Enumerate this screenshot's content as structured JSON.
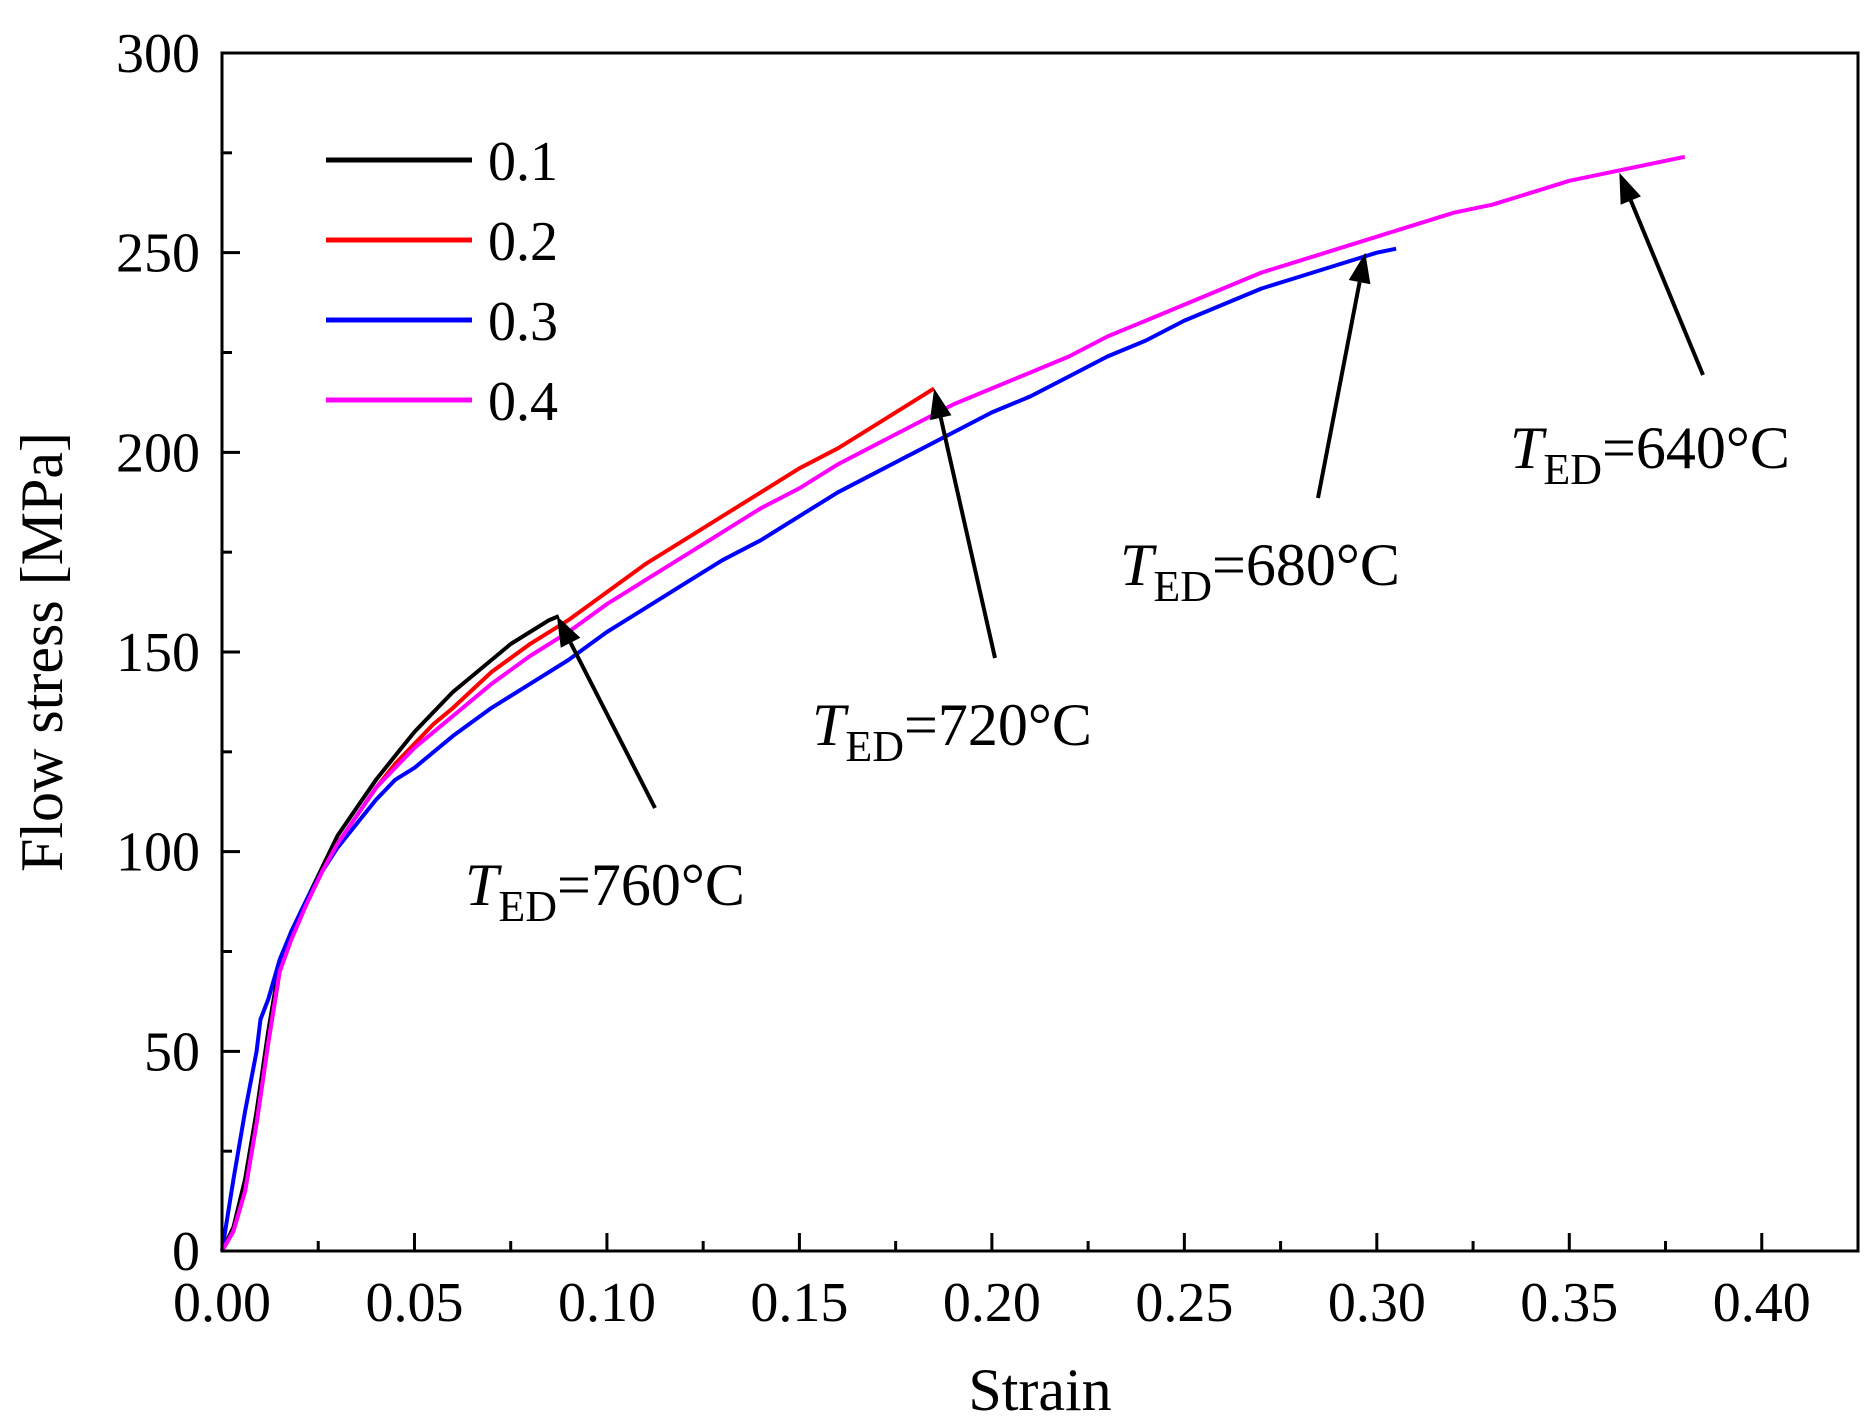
{
  "chart_data": {
    "type": "line",
    "title": "",
    "xlabel": "Strain",
    "ylabel": "Flow stress [MPa]",
    "xlim": [
      0,
      0.425
    ],
    "ylim": [
      0,
      300
    ],
    "xticks": [
      0.0,
      0.05,
      0.1,
      0.15,
      0.2,
      0.25,
      0.3,
      0.35,
      0.4
    ],
    "xtick_labels": [
      "0.00",
      "0.05",
      "0.10",
      "0.15",
      "0.20",
      "0.25",
      "0.30",
      "0.35",
      "0.40"
    ],
    "yticks": [
      0,
      50,
      100,
      150,
      200,
      250,
      300
    ],
    "ytick_labels": [
      "0",
      "50",
      "100",
      "150",
      "200",
      "250",
      "300"
    ],
    "grid": false,
    "legend_position": "top-left",
    "series": [
      {
        "name": "0.1",
        "color": "#000000",
        "x": [
          0,
          0.003,
          0.006,
          0.009,
          0.012,
          0.015,
          0.018,
          0.022,
          0.026,
          0.03,
          0.035,
          0.04,
          0.045,
          0.05,
          0.055,
          0.06,
          0.065,
          0.07,
          0.075,
          0.08,
          0.085,
          0.0875
        ],
        "y": [
          0,
          6,
          18,
          35,
          55,
          72,
          80,
          88,
          96,
          104,
          111,
          118,
          124,
          130,
          135,
          140,
          144,
          148,
          152,
          155,
          158,
          159
        ]
      },
      {
        "name": "0.2",
        "color": "#ff0000",
        "x": [
          0,
          0.003,
          0.006,
          0.009,
          0.012,
          0.015,
          0.018,
          0.022,
          0.026,
          0.03,
          0.035,
          0.04,
          0.045,
          0.05,
          0.055,
          0.06,
          0.07,
          0.08,
          0.09,
          0.1,
          0.11,
          0.12,
          0.13,
          0.14,
          0.15,
          0.16,
          0.17,
          0.18,
          0.185
        ],
        "y": [
          0,
          5,
          15,
          32,
          52,
          70,
          78,
          87,
          95,
          102,
          109,
          116,
          122,
          127,
          132,
          136,
          145,
          152,
          158,
          165,
          172,
          178,
          184,
          190,
          196,
          201,
          207,
          213,
          216
        ]
      },
      {
        "name": "0.3",
        "color": "#0000ff",
        "x": [
          0,
          0.003,
          0.006,
          0.009,
          0.01,
          0.012,
          0.015,
          0.018,
          0.022,
          0.026,
          0.03,
          0.035,
          0.04,
          0.045,
          0.05,
          0.06,
          0.07,
          0.08,
          0.09,
          0.1,
          0.11,
          0.12,
          0.13,
          0.14,
          0.15,
          0.16,
          0.17,
          0.18,
          0.19,
          0.2,
          0.21,
          0.22,
          0.23,
          0.24,
          0.25,
          0.26,
          0.27,
          0.28,
          0.29,
          0.3,
          0.305
        ],
        "y": [
          0,
          18,
          35,
          50,
          58,
          63,
          73,
          80,
          88,
          95,
          101,
          107,
          113,
          118,
          121,
          129,
          136,
          142,
          148,
          155,
          161,
          167,
          173,
          178,
          184,
          190,
          195,
          200,
          205,
          210,
          214,
          219,
          224,
          228,
          233,
          237,
          241,
          244,
          247,
          250,
          251
        ]
      },
      {
        "name": "0.4",
        "color": "#ff00ff",
        "x": [
          0,
          0.003,
          0.006,
          0.009,
          0.012,
          0.015,
          0.018,
          0.022,
          0.026,
          0.03,
          0.035,
          0.04,
          0.045,
          0.05,
          0.06,
          0.07,
          0.08,
          0.09,
          0.1,
          0.11,
          0.12,
          0.13,
          0.14,
          0.15,
          0.16,
          0.17,
          0.18,
          0.19,
          0.2,
          0.21,
          0.22,
          0.23,
          0.24,
          0.25,
          0.26,
          0.27,
          0.28,
          0.29,
          0.3,
          0.31,
          0.32,
          0.33,
          0.34,
          0.35,
          0.36,
          0.37,
          0.38
        ],
        "y": [
          0,
          5,
          15,
          32,
          52,
          70,
          78,
          87,
          95,
          102,
          109,
          116,
          121,
          126,
          134,
          142,
          149,
          155,
          162,
          168,
          174,
          180,
          186,
          191,
          197,
          202,
          207,
          212,
          216,
          220,
          224,
          229,
          233,
          237,
          241,
          245,
          248,
          251,
          254,
          257,
          260,
          262,
          265,
          268,
          270,
          272,
          274
        ]
      }
    ],
    "annotations": [
      {
        "italic": "T",
        "sub": "ED",
        "rest": "=760°C",
        "arrow_to": [
          0.087,
          159
        ]
      },
      {
        "italic": "T",
        "sub": "ED",
        "rest": "=720°C",
        "arrow_to": [
          0.185,
          216
        ]
      },
      {
        "italic": "T",
        "sub": "ED",
        "rest": "=680°C",
        "arrow_to": [
          0.297,
          250
        ]
      },
      {
        "italic": "T",
        "sub": "ED",
        "rest": "=640°C",
        "arrow_to": [
          0.363,
          270
        ]
      }
    ]
  }
}
